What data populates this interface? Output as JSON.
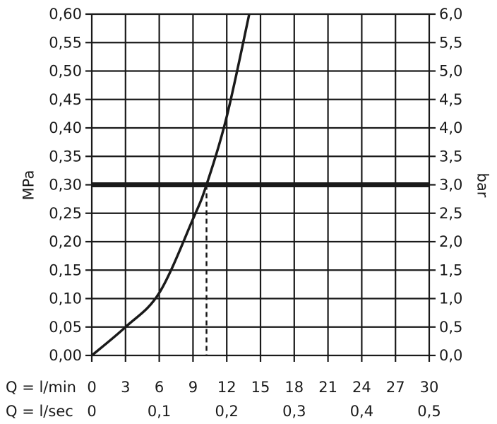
{
  "chart_data": {
    "type": "line",
    "title": "",
    "y_left": {
      "label": "MPa",
      "min": 0,
      "max": 0.6,
      "step": 0.05,
      "tick_labels": [
        "0,00",
        "0,05",
        "0,10",
        "0,15",
        "0,20",
        "0,25",
        "0,30",
        "0,35",
        "0,40",
        "0,45",
        "0,50",
        "0,55",
        "0,60"
      ]
    },
    "y_right": {
      "label": "bar",
      "min": 0,
      "max": 6,
      "step": 0.5,
      "tick_labels": [
        "0,0",
        "0,5",
        "1,0",
        "1,5",
        "2,0",
        "2,5",
        "3,0",
        "3,5",
        "4,0",
        "4,5",
        "5,0",
        "5,5",
        "6,0"
      ]
    },
    "x_primary": {
      "label": "Q = l/min",
      "min": 0,
      "max": 30,
      "step": 3,
      "tick_labels": [
        "0",
        "3",
        "6",
        "9",
        "12",
        "15",
        "18",
        "21",
        "24",
        "27",
        "30"
      ]
    },
    "x_secondary": {
      "label": "Q = l/sec",
      "ticks": [
        {
          "value_lmin": 0,
          "label": "0"
        },
        {
          "value_lmin": 6,
          "label": "0,1"
        },
        {
          "value_lmin": 12,
          "label": "0,2"
        },
        {
          "value_lmin": 18,
          "label": "0,3"
        },
        {
          "value_lmin": 24,
          "label": "0,4"
        },
        {
          "value_lmin": 30,
          "label": "0,5"
        }
      ]
    },
    "series": [
      {
        "x": [
          0,
          3,
          6,
          9,
          10.2,
          12,
          14
        ],
        "y": [
          0,
          0.05,
          0.11,
          0.24,
          0.3,
          0.42,
          0.6
        ],
        "color": "#1a1a1a"
      }
    ],
    "reference_line": {
      "y": 0.3,
      "color": "#1a1a1a"
    },
    "intersection_marker": {
      "x": 10.2,
      "y": 0.3,
      "style": "dashed"
    },
    "grid": true
  }
}
